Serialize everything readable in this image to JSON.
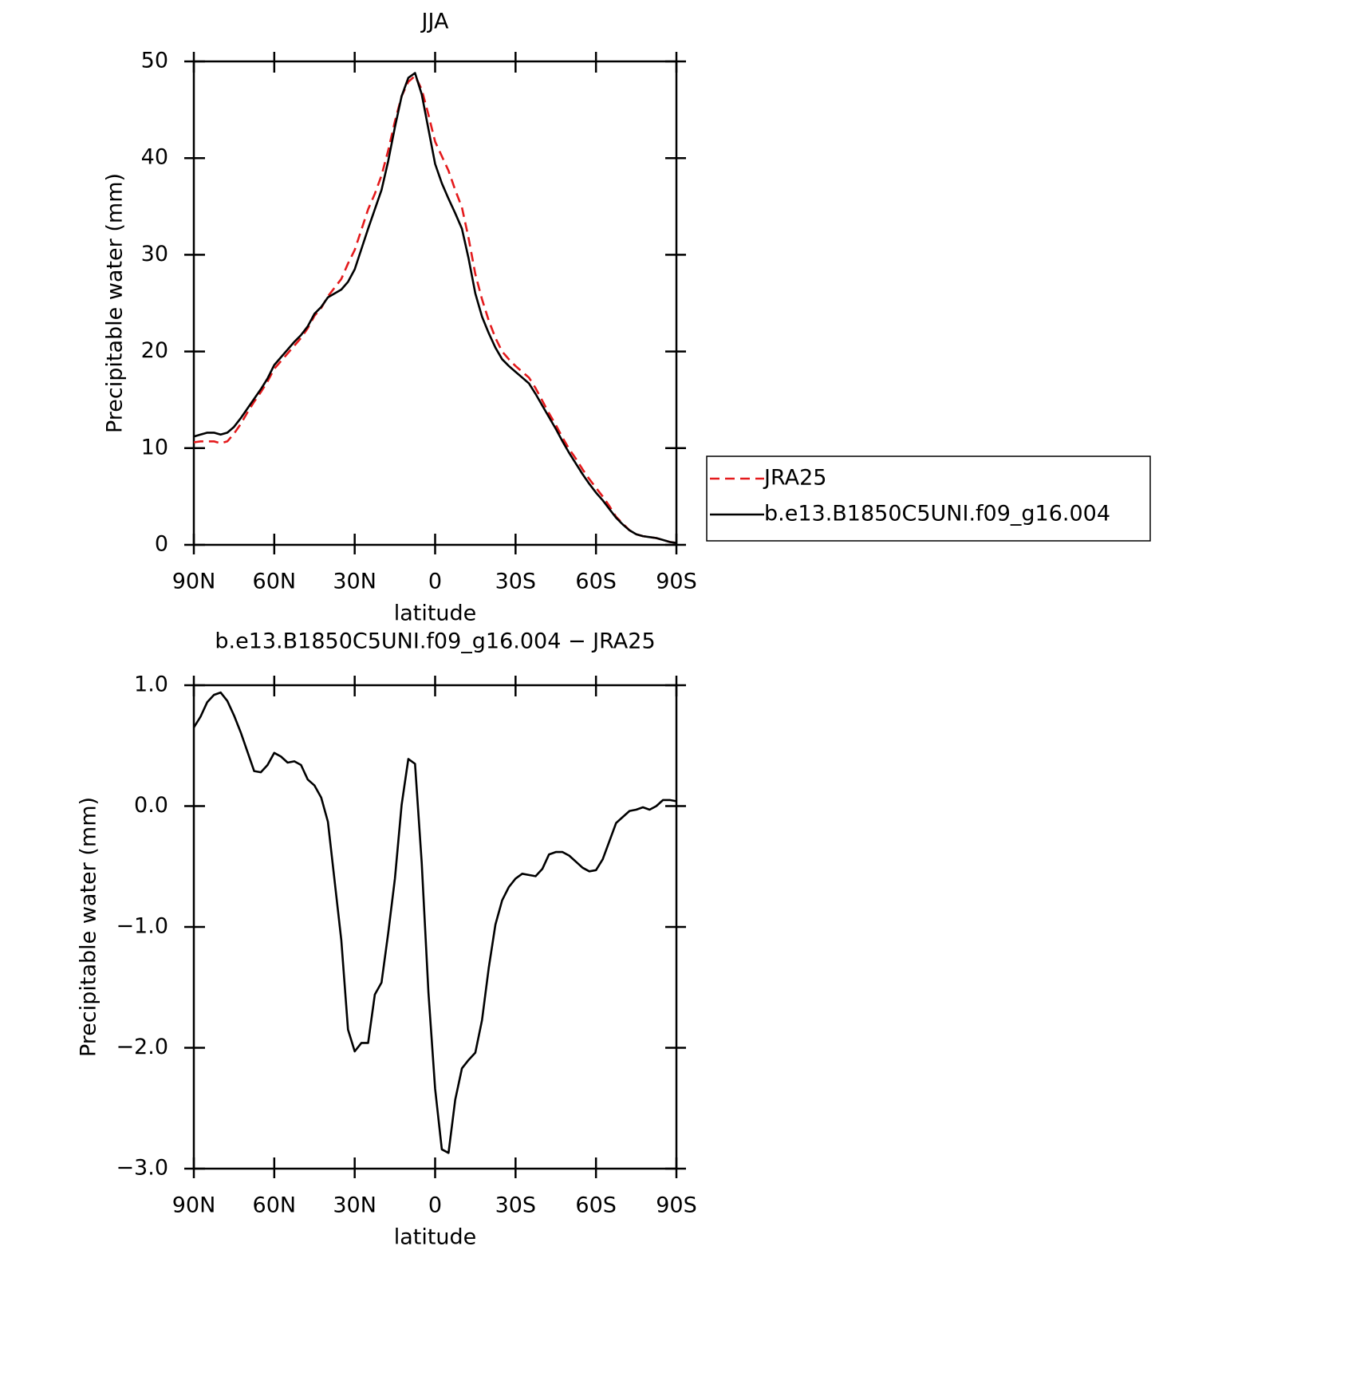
{
  "chart_data": [
    {
      "type": "line",
      "title": "JJA",
      "xlabel": "latitude",
      "ylabel": "Precipitable water (mm)",
      "xlim": [
        90,
        -90
      ],
      "xticks": [
        {
          "value": 90,
          "label": "90N"
        },
        {
          "value": 60,
          "label": "60N"
        },
        {
          "value": 30,
          "label": "30N"
        },
        0,
        {
          "value": -30,
          "label": "30S"
        },
        {
          "value": -60,
          "label": "60S"
        },
        {
          "value": -90,
          "label": "90S"
        }
      ],
      "ylim": [
        0,
        50
      ],
      "yticks": [
        0,
        10,
        20,
        30,
        40,
        50
      ],
      "x": [
        90,
        87.5,
        85,
        82.5,
        80,
        77.5,
        75,
        72.5,
        70,
        67.5,
        65,
        62.5,
        60,
        57.5,
        55,
        52.5,
        50,
        47.5,
        45,
        42.5,
        40,
        37.5,
        35,
        32.5,
        30,
        27.5,
        25,
        22.5,
        20,
        17.5,
        15,
        12.5,
        10,
        7.5,
        5,
        2.5,
        0,
        -2.5,
        -5,
        -7.5,
        -10,
        -12.5,
        -15,
        -17.5,
        -20,
        -22.5,
        -25,
        -27.5,
        -30,
        -32.5,
        -35,
        -37.5,
        -40,
        -42.5,
        -45,
        -47.5,
        -50,
        -52.5,
        -55,
        -57.5,
        -60,
        -62.5,
        -65,
        -67.5,
        -70,
        -72.5,
        -75,
        -77.5,
        -80,
        -82.5,
        -85,
        -87.5,
        -90
      ],
      "series": [
        {
          "name": "JRA25",
          "color": "#e41a1c",
          "dashed": true,
          "values": [
            10.6,
            10.7,
            10.7,
            10.7,
            10.5,
            10.7,
            11.5,
            12.5,
            13.7,
            14.8,
            15.8,
            16.9,
            18.2,
            19.0,
            19.8,
            20.6,
            21.4,
            22.4,
            23.7,
            24.5,
            25.7,
            26.6,
            27.5,
            29.1,
            30.5,
            32.6,
            34.7,
            36.3,
            38.2,
            40.8,
            43.8,
            46.4,
            47.9,
            48.5,
            47.1,
            44.5,
            41.7,
            40.2,
            38.7,
            36.7,
            34.9,
            31.7,
            28.0,
            25.4,
            23.2,
            21.4,
            20.0,
            19.2,
            18.5,
            17.9,
            17.3,
            16.2,
            14.9,
            13.6,
            12.4,
            11.1,
            9.9,
            8.9,
            7.8,
            6.8,
            5.9,
            5.0,
            4.0,
            2.9,
            2.2,
            1.5,
            1.1,
            0.9,
            0.8,
            0.7,
            0.5,
            0.3,
            0.2
          ]
        },
        {
          "name": "b.e13.B1850C5UNI.f09_g16.004",
          "color": "#000000",
          "dashed": false,
          "values": [
            11.2,
            11.4,
            11.6,
            11.6,
            11.4,
            11.6,
            12.2,
            13.1,
            14.1,
            15.1,
            16.1,
            17.2,
            18.6,
            19.4,
            20.2,
            21.0,
            21.7,
            22.6,
            23.9,
            24.6,
            25.6,
            26.0,
            26.4,
            27.2,
            28.5,
            30.6,
            32.7,
            34.7,
            36.7,
            39.7,
            43.2,
            46.4,
            48.3,
            48.8,
            46.6,
            43.0,
            39.4,
            37.4,
            35.8,
            34.3,
            32.7,
            29.6,
            26.0,
            23.6,
            21.9,
            20.4,
            19.2,
            18.5,
            17.9,
            17.3,
            16.7,
            15.6,
            14.4,
            13.2,
            12.0,
            10.7,
            9.5,
            8.4,
            7.3,
            6.3,
            5.4,
            4.6,
            3.7,
            2.8,
            2.1,
            1.5,
            1.1,
            0.9,
            0.8,
            0.7,
            0.5,
            0.3,
            0.2
          ]
        }
      ]
    },
    {
      "type": "line",
      "title": "b.e13.B1850C5UNI.f09_g16.004 − JRA25",
      "xlabel": "latitude",
      "ylabel": "Precipitable water (mm)",
      "xlim": [
        90,
        -90
      ],
      "xticks": [
        {
          "value": 90,
          "label": "90N"
        },
        {
          "value": 60,
          "label": "60N"
        },
        {
          "value": 30,
          "label": "30N"
        },
        0,
        {
          "value": -30,
          "label": "30S"
        },
        {
          "value": -60,
          "label": "60S"
        },
        {
          "value": -90,
          "label": "90S"
        }
      ],
      "ylim": [
        -3,
        1
      ],
      "yticks": [
        {
          "value": -3,
          "label": "−3.0"
        },
        {
          "value": -2,
          "label": "−2.0"
        },
        {
          "value": -1,
          "label": "−1.0"
        },
        {
          "value": 0,
          "label": "0.0"
        },
        {
          "value": 1,
          "label": "1.0"
        }
      ],
      "x": [
        90,
        87.5,
        85,
        82.5,
        80,
        77.5,
        75,
        72.5,
        70,
        67.5,
        65,
        62.5,
        60,
        57.5,
        55,
        52.5,
        50,
        47.5,
        45,
        42.5,
        40,
        37.5,
        35,
        32.5,
        30,
        27.5,
        25,
        22.5,
        20,
        17.5,
        15,
        12.5,
        10,
        7.5,
        5,
        2.5,
        0,
        -2.5,
        -5,
        -7.5,
        -10,
        -12.5,
        -15,
        -17.5,
        -20,
        -22.5,
        -25,
        -27.5,
        -30,
        -32.5,
        -35,
        -37.5,
        -40,
        -42.5,
        -45,
        -47.5,
        -50,
        -52.5,
        -55,
        -57.5,
        -60,
        -62.5,
        -65,
        -67.5,
        -70,
        -72.5,
        -75,
        -77.5,
        -80,
        -82.5,
        -85,
        -87.5,
        -90
      ],
      "color": "#000000",
      "values": [
        0.65,
        0.74,
        0.86,
        0.92,
        0.94,
        0.87,
        0.75,
        0.61,
        0.45,
        0.29,
        0.28,
        0.34,
        0.44,
        0.41,
        0.36,
        0.37,
        0.34,
        0.22,
        0.17,
        0.07,
        -0.13,
        -0.62,
        -1.11,
        -1.85,
        -2.03,
        -1.96,
        -1.96,
        -1.56,
        -1.46,
        -1.05,
        -0.6,
        0.01,
        0.39,
        0.35,
        -0.47,
        -1.54,
        -2.34,
        -2.84,
        -2.87,
        -2.43,
        -2.17,
        -2.1,
        -2.04,
        -1.77,
        -1.34,
        -0.98,
        -0.78,
        -0.67,
        -0.6,
        -0.56,
        -0.57,
        -0.58,
        -0.52,
        -0.4,
        -0.38,
        -0.38,
        -0.41,
        -0.46,
        -0.51,
        -0.54,
        -0.53,
        -0.44,
        -0.29,
        -0.14,
        -0.09,
        -0.04,
        -0.03,
        -0.01,
        -0.03,
        0.0,
        0.05,
        0.05,
        0.04
      ]
    }
  ]
}
